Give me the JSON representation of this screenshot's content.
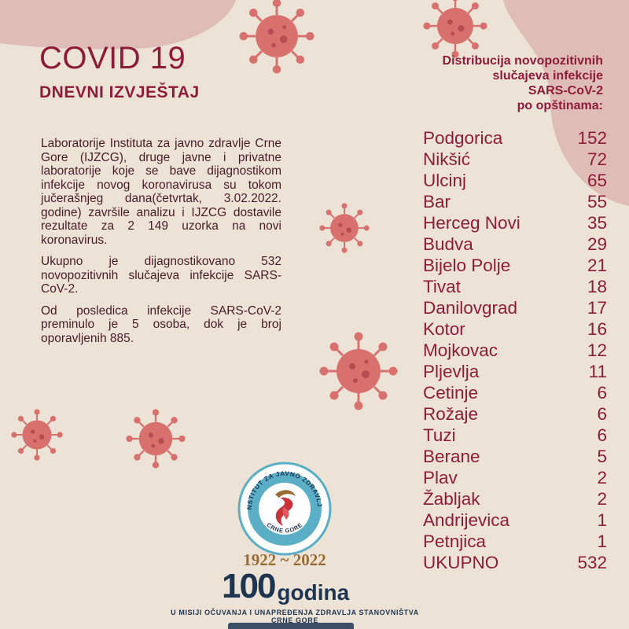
{
  "header": {
    "title": "COVID 19",
    "subtitle": "DNEVNI IZVJEŠTAJ"
  },
  "report": {
    "paragraphs": [
      " Laboratorije Instituta za javno zdravlje Crne Gore (IJZCG), druge javne i privatne laboratorije koje se bave dijagnostikom infekcije novog koronavirusa su tokom jučerašnjeg dana(četvrtak, 3.02.2022. godine) završile analizu i IJZCG dostavile rezultate za  2 149 uzorka na novi koronavirus.",
      " Ukupno je dijagnostikovano  532 novopozitivnih slučajeva infekcije SARS-CoV-2.",
      " Od posledica infekcije SARS-CoV-2 preminulo je 5 osoba, dok je broj oporavljenih 885."
    ]
  },
  "distribution": {
    "heading_lines": [
      "Distribucija novopozitivnih",
      "slučajeva infekcije",
      "SARS-CoV-2",
      "po opštinama:"
    ],
    "rows": [
      {
        "name": "Podgorica",
        "value": "152"
      },
      {
        "name": "Nikšić",
        "value": "72"
      },
      {
        "name": "Ulcinj",
        "value": "65"
      },
      {
        "name": "Bar",
        "value": "55"
      },
      {
        "name": "Herceg Novi",
        "value": "35"
      },
      {
        "name": "Budva",
        "value": "29"
      },
      {
        "name": "Bijelo Polje",
        "value": "21"
      },
      {
        "name": "Tivat",
        "value": "18"
      },
      {
        "name": "Danilovgrad",
        "value": "17"
      },
      {
        "name": "Kotor",
        "value": "16"
      },
      {
        "name": "Mojkovac",
        "value": "12"
      },
      {
        "name": "Pljevlja",
        "value": "11"
      },
      {
        "name": "Cetinje",
        "value": "6"
      },
      {
        "name": "Rožaje",
        "value": "6"
      },
      {
        "name": "Tuzi",
        "value": "6"
      },
      {
        "name": "Berane",
        "value": "5"
      },
      {
        "name": "Plav",
        "value": "2"
      },
      {
        "name": "Žabljak",
        "value": "2"
      },
      {
        "name": "Andrijevica",
        "value": "1"
      },
      {
        "name": "Petnjica",
        "value": "1"
      },
      {
        "name": "UKUPNO",
        "value": "532"
      }
    ]
  },
  "logo": {
    "ring_text": "INSTITUT ZA JAVNO ZDRAVLJE",
    "bottom_text": "CRNE GORE",
    "years": "1922 ~ 2022",
    "hundred_number": "100",
    "hundred_word": "godina",
    "motto": "U MISIJI OČUVANJA I UNAPREĐENJA ZDRAVLJA STANOVNIŠTVA CRNE GORE"
  },
  "colors": {
    "background": "#ece3d6",
    "accent": "#8e1c39",
    "blob": "#e0bcb6",
    "virus": "#d8706e",
    "navy": "#1e3552",
    "gold": "#9a6a33",
    "logo_ring": "#5aaec6"
  }
}
